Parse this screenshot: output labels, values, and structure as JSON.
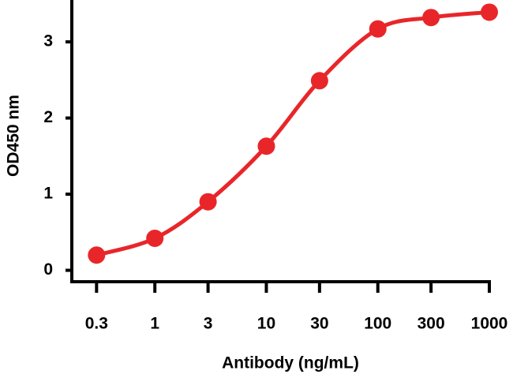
{
  "chart_data": {
    "type": "line",
    "x_label": "Antibody (ng/mL)",
    "y_label": "OD450 nm",
    "x": [
      0.3,
      1,
      3,
      10,
      30,
      100,
      300,
      1000
    ],
    "series": [
      {
        "color": "#e8262a",
        "values": [
          0.2,
          0.42,
          0.9,
          1.63,
          2.49,
          3.17,
          3.32,
          3.39
        ]
      }
    ],
    "xscale": "log",
    "xlim": [
      0.18,
      1000
    ],
    "xticks": [
      0.3,
      1,
      3,
      10,
      30,
      100,
      300,
      1000
    ],
    "ylim": [
      -0.15,
      3.55
    ],
    "yticks": [
      0,
      1,
      2,
      3
    ]
  }
}
